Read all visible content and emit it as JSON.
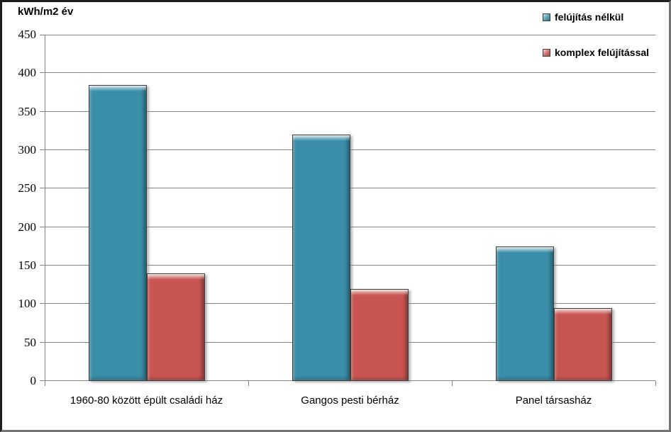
{
  "chart_data": {
    "type": "bar",
    "title": "kWh/m2 év",
    "categories": [
      "1960-80 között épült családi ház",
      "Gangos pesti bérház",
      "Panel társasház"
    ],
    "series": [
      {
        "name": "felújítás nélkül",
        "color": "#3A8EA8",
        "values": [
          385,
          320,
          175
        ]
      },
      {
        "name": "komplex felújítással",
        "color": "#C85551",
        "values": [
          140,
          120,
          95
        ]
      }
    ],
    "xlabel": "",
    "ylabel": "kWh/m2 év",
    "ylim": [
      0,
      450
    ],
    "ytick_interval": 50,
    "yticks": [
      450,
      400,
      350,
      300,
      250,
      200,
      150,
      100,
      50,
      0
    ],
    "grid": true,
    "legend_position": "top-right",
    "colors": {
      "gridline": "#848484",
      "axis": "#848484",
      "text": "#000000",
      "background": "#FFFFFF"
    }
  }
}
